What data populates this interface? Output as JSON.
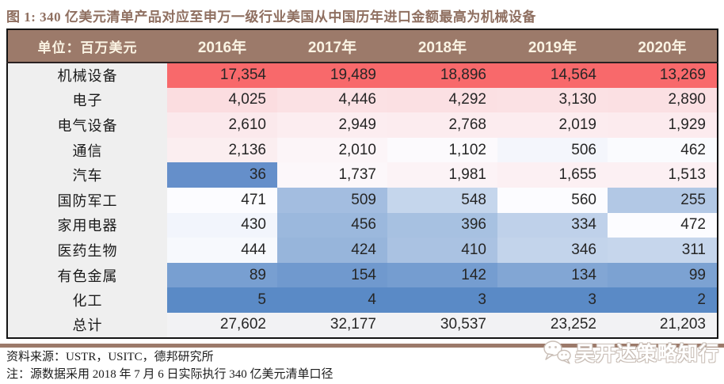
{
  "page": {
    "title": "图 1: 340 亿美元清单产品对应至申万一级行业美国从中国历年进口金额最高为机械设备"
  },
  "table": {
    "unit_label": "单位：百万美元",
    "year_headers": [
      "2016年",
      "2017年",
      "2018年",
      "2019年",
      "2020年"
    ],
    "rows": [
      {
        "label": "机械设备",
        "values": [
          "17,354",
          "19,489",
          "18,896",
          "14,564",
          "13,269"
        ],
        "colors": [
          "#F8696B",
          "#F8696B",
          "#F8696B",
          "#F8696B",
          "#F8696B"
        ]
      },
      {
        "label": "电子",
        "values": [
          "4,025",
          "4,446",
          "4,292",
          "3,130",
          "2,890"
        ],
        "colors": [
          "#FBDDE0",
          "#FBE1E4",
          "#FBE0E3",
          "#FBE1E4",
          "#FBE0E3"
        ]
      },
      {
        "label": "电气设备",
        "values": [
          "2,610",
          "2,949",
          "2,768",
          "2,019",
          "1,929"
        ],
        "colors": [
          "#FBE9EC",
          "#FCEDF0",
          "#FCECEF",
          "#FCECEF",
          "#FCEBEE"
        ]
      },
      {
        "label": "通信",
        "values": [
          "2,136",
          "2,010",
          "1,102",
          "506",
          "462"
        ],
        "colors": [
          "#FBEEF0",
          "#FCF5F8",
          "#FCFAFD",
          "#F4F6FC",
          "#FAFBFE"
        ]
      },
      {
        "label": "汽车",
        "values": [
          "36",
          "1,737",
          "1,981",
          "1,655",
          "1,513"
        ],
        "colors": [
          "#658FCA",
          "#FCF7FA",
          "#FCF3F6",
          "#FCF0F3",
          "#FCF0F3"
        ]
      },
      {
        "label": "国防军工",
        "values": [
          "471",
          "509",
          "548",
          "560",
          "255"
        ],
        "colors": [
          "#FCFCFF",
          "#A3BDE0",
          "#C5D6EC",
          "#FCFCFF",
          "#B2C8E5"
        ]
      },
      {
        "label": "家用电器",
        "values": [
          "430",
          "456",
          "396",
          "334",
          "472"
        ],
        "colors": [
          "#F2F5FC",
          "#9BB8DD",
          "#A7C1E1",
          "#BFD1EA",
          "#FCFCFF"
        ]
      },
      {
        "label": "医药生物",
        "values": [
          "444",
          "424",
          "410",
          "346",
          "311"
        ],
        "colors": [
          "#F7F9FD",
          "#97B5DB",
          "#AAC2E2",
          "#C3D4EB",
          "#C6D6EC"
        ]
      },
      {
        "label": "有色金属",
        "values": [
          "89",
          "154",
          "142",
          "134",
          "99"
        ],
        "colors": [
          "#789FD1",
          "#7099CE",
          "#759DD0",
          "#82A6D4",
          "#7CA2D2"
        ]
      },
      {
        "label": "化工",
        "values": [
          "5",
          "4",
          "3",
          "3",
          "2"
        ],
        "colors": [
          "#5A8AC6",
          "#5A8AC6",
          "#5A8AC6",
          "#5A8AC6",
          "#5A8AC6"
        ]
      },
      {
        "label": "总计",
        "values": [
          "27,602",
          "32,177",
          "30,537",
          "23,252",
          "21,203"
        ],
        "colors": [
          "#F2F2F4",
          "#F2F2F4",
          "#F2F2F4",
          "#F2F2F4",
          "#F2F2F4"
        ]
      }
    ]
  },
  "footer": {
    "source": "资料来源：USTR，USITC，德邦研究所",
    "note": "注：源数据采用 2018 年 7 月 6 日实际执行 340 亿美元清单口径"
  },
  "watermark": {
    "label": "吴开达策略知行",
    "icon": "wechat-icon"
  },
  "colors": {
    "header_bg": "#9C7A6A",
    "header_text": "#FAF3E3",
    "title_text": "#8F6F60",
    "label_col_bg": "#EFEFEF",
    "table_border": "#141414",
    "accent_band": "#9C7A6A",
    "scale_max_red": "#F8696B",
    "scale_mid_white": "#FCFCFF",
    "scale_min_blue": "#5A8AC6"
  },
  "chart_data": {
    "type": "table",
    "title": "图 1: 340 亿美元清单产品对应至申万一级行业美国从中国历年进口金额最高为机械设备",
    "unit": "百万美元",
    "columns": [
      "2016年",
      "2017年",
      "2018年",
      "2019年",
      "2020年"
    ],
    "row_labels": [
      "机械设备",
      "电子",
      "电气设备",
      "通信",
      "汽车",
      "国防军工",
      "家用电器",
      "医药生物",
      "有色金属",
      "化工",
      "总计"
    ],
    "values": [
      [
        17354,
        19489,
        18896,
        14564,
        13269
      ],
      [
        4025,
        4446,
        4292,
        3130,
        2890
      ],
      [
        2610,
        2949,
        2768,
        2019,
        1929
      ],
      [
        2136,
        2010,
        1102,
        506,
        462
      ],
      [
        36,
        1737,
        1981,
        1655,
        1513
      ],
      [
        471,
        509,
        548,
        560,
        255
      ],
      [
        430,
        456,
        396,
        334,
        472
      ],
      [
        444,
        424,
        410,
        346,
        311
      ],
      [
        89,
        154,
        142,
        134,
        99
      ],
      [
        5,
        4,
        3,
        3,
        2
      ],
      [
        27602,
        32177,
        30537,
        23252,
        21203
      ]
    ],
    "formatting": "heatmap color scale per column: min=#5A8AC6 (blue), mid=#FCFCFF (white), max=#F8696B (red); 总计 row unshaded",
    "source": "USTR，USITC，德邦研究所",
    "note": "源数据采用 2018 年 7 月 6 日实际执行 340 亿美元清单口径"
  }
}
